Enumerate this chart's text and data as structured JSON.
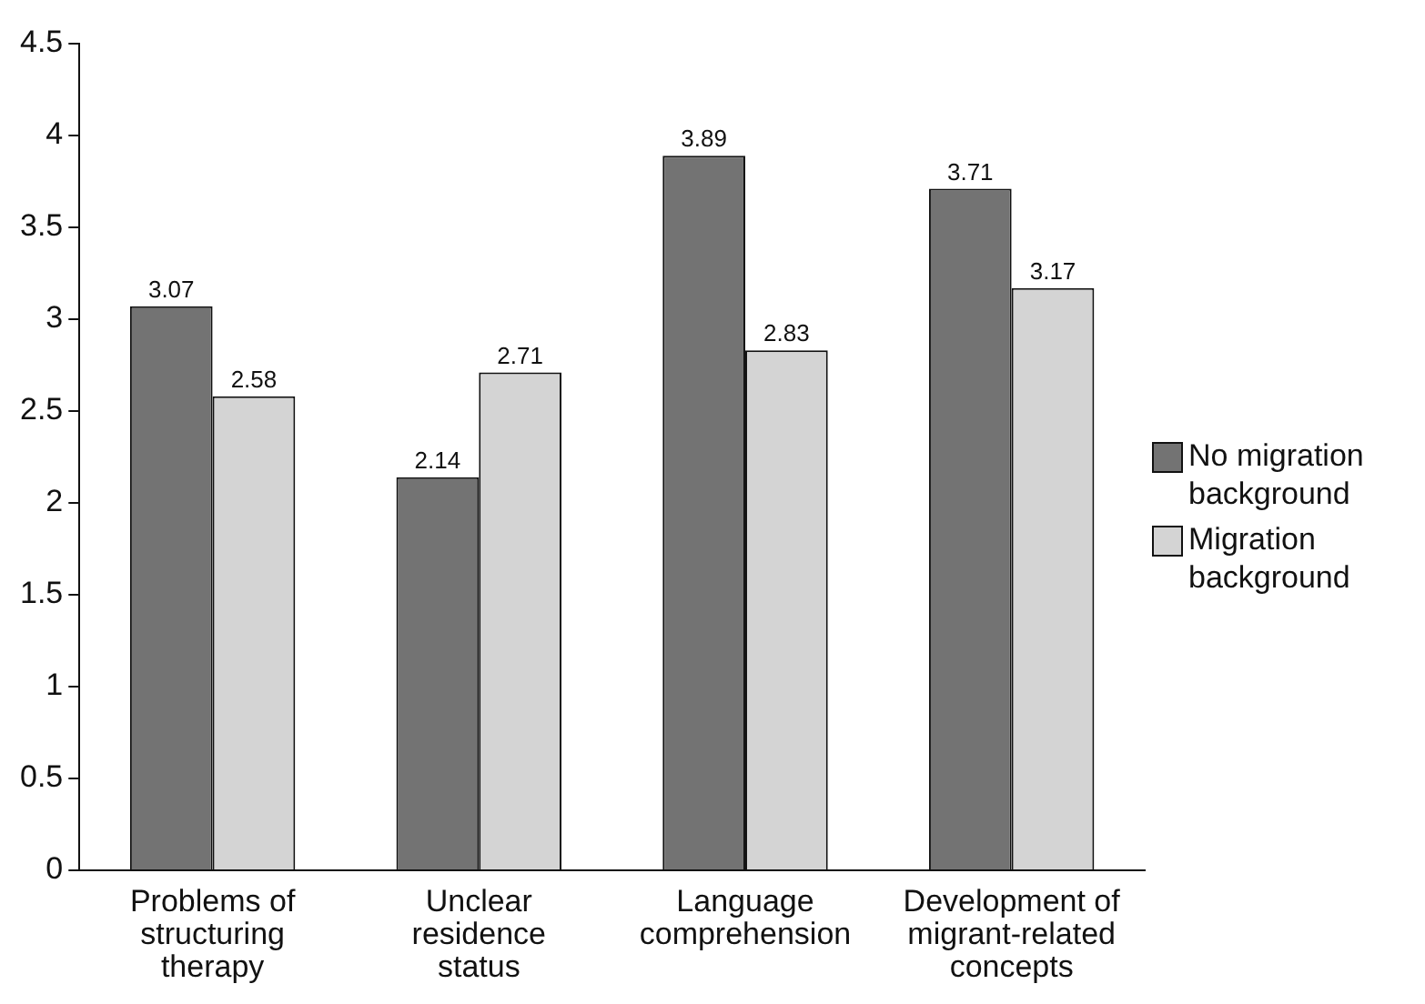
{
  "chart_data": {
    "type": "bar",
    "categories": [
      "Problems of structuring therapy",
      "Unclear residence status",
      "Language comprehension",
      "Development of migrant-related concepts"
    ],
    "series": [
      {
        "name": "No migration background",
        "color": "#737373",
        "values": [
          3.07,
          2.14,
          3.89,
          3.71
        ]
      },
      {
        "name": "Migration background",
        "color": "#d4d4d4",
        "values": [
          2.58,
          2.71,
          2.83,
          3.17
        ]
      }
    ],
    "ylim": [
      0,
      4.5
    ],
    "yticks": [
      0,
      0.5,
      1,
      1.5,
      2,
      2.5,
      3,
      3.5,
      4,
      4.5
    ],
    "grid": false,
    "legend": "right",
    "data_labels": true
  }
}
